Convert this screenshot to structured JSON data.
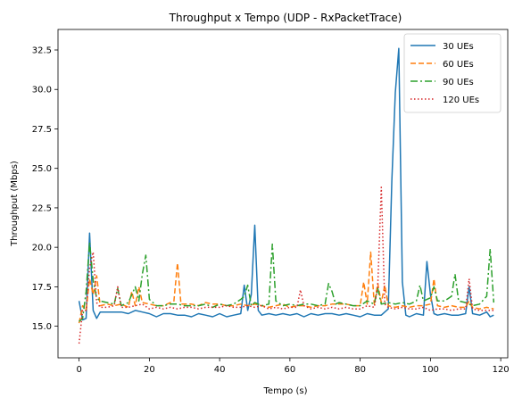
{
  "chart_data": {
    "type": "line",
    "title": "Throughput x Tempo (UDP - RxPacketTrace)",
    "xlabel": "Tempo (s)",
    "ylabel": "Throughput (Mbps)",
    "xlim": [
      -6,
      122
    ],
    "ylim": [
      13.0,
      33.8
    ],
    "xticks": [
      0,
      20,
      40,
      60,
      80,
      100,
      120
    ],
    "yticks": [
      15.0,
      17.5,
      20.0,
      22.5,
      25.0,
      27.5,
      30.0,
      32.5
    ],
    "ytick_labels": [
      "15.0",
      "17.5",
      "20.0",
      "22.5",
      "25.0",
      "27.5",
      "30.0",
      "32.5"
    ],
    "grid": false,
    "legend_position": "top-right",
    "series": [
      {
        "name": "30 UEs",
        "color": "#1f77b4",
        "dash": "solid",
        "points": [
          [
            0,
            16.6
          ],
          [
            1,
            15.4
          ],
          [
            2,
            15.5
          ],
          [
            3,
            20.9
          ],
          [
            4,
            16.0
          ],
          [
            5,
            15.5
          ],
          [
            6,
            15.9
          ],
          [
            8,
            15.9
          ],
          [
            10,
            15.9
          ],
          [
            12,
            15.9
          ],
          [
            14,
            15.8
          ],
          [
            16,
            16.0
          ],
          [
            18,
            15.9
          ],
          [
            20,
            15.8
          ],
          [
            22,
            15.6
          ],
          [
            24,
            15.8
          ],
          [
            26,
            15.8
          ],
          [
            28,
            15.7
          ],
          [
            30,
            15.7
          ],
          [
            32,
            15.6
          ],
          [
            34,
            15.8
          ],
          [
            36,
            15.7
          ],
          [
            38,
            15.6
          ],
          [
            40,
            15.8
          ],
          [
            42,
            15.6
          ],
          [
            44,
            15.7
          ],
          [
            46,
            15.8
          ],
          [
            47,
            17.6
          ],
          [
            48,
            16.0
          ],
          [
            49,
            17.0
          ],
          [
            50,
            21.4
          ],
          [
            51,
            16.0
          ],
          [
            52,
            15.7
          ],
          [
            54,
            15.8
          ],
          [
            56,
            15.7
          ],
          [
            58,
            15.8
          ],
          [
            60,
            15.7
          ],
          [
            62,
            15.8
          ],
          [
            64,
            15.6
          ],
          [
            66,
            15.8
          ],
          [
            68,
            15.7
          ],
          [
            70,
            15.8
          ],
          [
            72,
            15.8
          ],
          [
            74,
            15.7
          ],
          [
            76,
            15.8
          ],
          [
            78,
            15.7
          ],
          [
            80,
            15.6
          ],
          [
            82,
            15.8
          ],
          [
            84,
            15.7
          ],
          [
            86,
            15.7
          ],
          [
            87,
            15.9
          ],
          [
            88,
            16.1
          ],
          [
            89,
            24.2
          ],
          [
            90,
            29.8
          ],
          [
            91,
            32.6
          ],
          [
            92,
            17.8
          ],
          [
            93,
            15.7
          ],
          [
            94,
            15.6
          ],
          [
            96,
            15.8
          ],
          [
            98,
            15.7
          ],
          [
            99,
            19.1
          ],
          [
            100,
            17.0
          ],
          [
            101,
            15.8
          ],
          [
            102,
            15.7
          ],
          [
            104,
            15.8
          ],
          [
            106,
            15.7
          ],
          [
            108,
            15.7
          ],
          [
            110,
            15.8
          ],
          [
            111,
            17.5
          ],
          [
            112,
            15.8
          ],
          [
            114,
            15.7
          ],
          [
            116,
            15.9
          ],
          [
            117,
            15.6
          ],
          [
            118,
            15.7
          ]
        ]
      },
      {
        "name": "60 UEs",
        "color": "#ff7f0e",
        "dash": "6,3",
        "points": [
          [
            0,
            15.2
          ],
          [
            1,
            16.3
          ],
          [
            2,
            16.0
          ],
          [
            3,
            18.0
          ],
          [
            4,
            17.0
          ],
          [
            5,
            18.2
          ],
          [
            6,
            16.3
          ],
          [
            8,
            16.4
          ],
          [
            10,
            16.3
          ],
          [
            12,
            16.4
          ],
          [
            14,
            16.2
          ],
          [
            15,
            17.2
          ],
          [
            16,
            16.3
          ],
          [
            17,
            17.5
          ],
          [
            18,
            16.5
          ],
          [
            20,
            16.4
          ],
          [
            22,
            16.3
          ],
          [
            24,
            16.3
          ],
          [
            26,
            16.5
          ],
          [
            27,
            16.6
          ],
          [
            28,
            19.0
          ],
          [
            29,
            16.4
          ],
          [
            30,
            16.4
          ],
          [
            32,
            16.4
          ],
          [
            34,
            16.3
          ],
          [
            36,
            16.5
          ],
          [
            38,
            16.4
          ],
          [
            40,
            16.4
          ],
          [
            42,
            16.3
          ],
          [
            44,
            16.3
          ],
          [
            46,
            16.4
          ],
          [
            48,
            16.3
          ],
          [
            50,
            16.4
          ],
          [
            52,
            16.3
          ],
          [
            54,
            16.2
          ],
          [
            56,
            16.3
          ],
          [
            58,
            16.4
          ],
          [
            60,
            16.2
          ],
          [
            62,
            16.3
          ],
          [
            64,
            16.3
          ],
          [
            66,
            16.2
          ],
          [
            68,
            16.3
          ],
          [
            70,
            16.3
          ],
          [
            72,
            16.4
          ],
          [
            74,
            16.4
          ],
          [
            76,
            16.4
          ],
          [
            78,
            16.3
          ],
          [
            80,
            16.3
          ],
          [
            81,
            17.8
          ],
          [
            82,
            16.4
          ],
          [
            83,
            19.7
          ],
          [
            84,
            16.4
          ],
          [
            85,
            17.7
          ],
          [
            86,
            16.5
          ],
          [
            87,
            17.6
          ],
          [
            88,
            16.3
          ],
          [
            90,
            16.2
          ],
          [
            92,
            16.3
          ],
          [
            94,
            16.2
          ],
          [
            96,
            16.3
          ],
          [
            98,
            16.3
          ],
          [
            100,
            16.4
          ],
          [
            101,
            18.0
          ],
          [
            102,
            16.3
          ],
          [
            104,
            16.2
          ],
          [
            106,
            16.3
          ],
          [
            108,
            16.2
          ],
          [
            110,
            16.2
          ],
          [
            111,
            16.6
          ],
          [
            112,
            16.2
          ],
          [
            114,
            16.1
          ],
          [
            116,
            16.2
          ],
          [
            118,
            16.1
          ]
        ]
      },
      {
        "name": "90 UEs",
        "color": "#2ca02c",
        "dash": "8,3,2,3",
        "points": [
          [
            0,
            15.3
          ],
          [
            1,
            15.5
          ],
          [
            2,
            17.2
          ],
          [
            3,
            20.3
          ],
          [
            4,
            17.9
          ],
          [
            5,
            16.8
          ],
          [
            6,
            16.6
          ],
          [
            8,
            16.5
          ],
          [
            10,
            16.4
          ],
          [
            11,
            17.4
          ],
          [
            12,
            16.3
          ],
          [
            14,
            16.5
          ],
          [
            16,
            17.5
          ],
          [
            17,
            16.6
          ],
          [
            18,
            18.3
          ],
          [
            19,
            19.5
          ],
          [
            20,
            16.7
          ],
          [
            22,
            16.3
          ],
          [
            24,
            16.3
          ],
          [
            26,
            16.4
          ],
          [
            28,
            16.4
          ],
          [
            30,
            16.3
          ],
          [
            32,
            16.3
          ],
          [
            34,
            16.3
          ],
          [
            36,
            16.4
          ],
          [
            38,
            16.2
          ],
          [
            40,
            16.4
          ],
          [
            42,
            16.3
          ],
          [
            44,
            16.4
          ],
          [
            46,
            16.7
          ],
          [
            47,
            16.9
          ],
          [
            48,
            17.6
          ],
          [
            49,
            16.3
          ],
          [
            50,
            16.5
          ],
          [
            52,
            16.3
          ],
          [
            54,
            16.4
          ],
          [
            55,
            20.2
          ],
          [
            56,
            16.6
          ],
          [
            58,
            16.3
          ],
          [
            60,
            16.4
          ],
          [
            62,
            16.3
          ],
          [
            64,
            16.4
          ],
          [
            66,
            16.4
          ],
          [
            68,
            16.3
          ],
          [
            70,
            16.4
          ],
          [
            71,
            17.7
          ],
          [
            72,
            17.2
          ],
          [
            73,
            16.4
          ],
          [
            74,
            16.5
          ],
          [
            76,
            16.4
          ],
          [
            78,
            16.3
          ],
          [
            80,
            16.3
          ],
          [
            82,
            16.6
          ],
          [
            84,
            16.4
          ],
          [
            85,
            17.4
          ],
          [
            86,
            16.4
          ],
          [
            88,
            16.5
          ],
          [
            90,
            16.4
          ],
          [
            92,
            16.5
          ],
          [
            94,
            16.4
          ],
          [
            96,
            16.6
          ],
          [
            97,
            17.6
          ],
          [
            98,
            16.6
          ],
          [
            100,
            16.8
          ],
          [
            101,
            17.5
          ],
          [
            102,
            16.6
          ],
          [
            104,
            16.6
          ],
          [
            106,
            16.9
          ],
          [
            107,
            18.3
          ],
          [
            108,
            16.6
          ],
          [
            110,
            16.5
          ],
          [
            112,
            16.3
          ],
          [
            114,
            16.4
          ],
          [
            116,
            16.9
          ],
          [
            117,
            19.9
          ],
          [
            118,
            16.5
          ]
        ]
      },
      {
        "name": "120 UEs",
        "color": "#d62728",
        "dash": "1.5,2.5",
        "points": [
          [
            0,
            13.9
          ],
          [
            1,
            16.0
          ],
          [
            2,
            16.0
          ],
          [
            3,
            18.7
          ],
          [
            4,
            19.7
          ],
          [
            5,
            16.5
          ],
          [
            6,
            16.2
          ],
          [
            8,
            16.2
          ],
          [
            10,
            16.3
          ],
          [
            11,
            17.5
          ],
          [
            12,
            16.2
          ],
          [
            14,
            16.2
          ],
          [
            16,
            16.3
          ],
          [
            18,
            16.4
          ],
          [
            20,
            16.1
          ],
          [
            22,
            16.2
          ],
          [
            24,
            16.1
          ],
          [
            26,
            16.2
          ],
          [
            28,
            16.1
          ],
          [
            30,
            16.2
          ],
          [
            32,
            16.2
          ],
          [
            34,
            16.1
          ],
          [
            36,
            16.2
          ],
          [
            38,
            16.2
          ],
          [
            40,
            16.2
          ],
          [
            42,
            16.3
          ],
          [
            44,
            16.2
          ],
          [
            46,
            16.2
          ],
          [
            48,
            16.3
          ],
          [
            50,
            16.2
          ],
          [
            52,
            16.3
          ],
          [
            54,
            16.1
          ],
          [
            56,
            16.2
          ],
          [
            58,
            16.1
          ],
          [
            60,
            16.2
          ],
          [
            62,
            16.2
          ],
          [
            63,
            17.3
          ],
          [
            64,
            16.3
          ],
          [
            66,
            16.1
          ],
          [
            68,
            16.2
          ],
          [
            70,
            16.1
          ],
          [
            72,
            16.2
          ],
          [
            74,
            16.1
          ],
          [
            76,
            16.2
          ],
          [
            78,
            16.1
          ],
          [
            80,
            16.1
          ],
          [
            82,
            16.3
          ],
          [
            84,
            16.2
          ],
          [
            85,
            17.5
          ],
          [
            86,
            23.8
          ],
          [
            87,
            16.4
          ],
          [
            88,
            16.2
          ],
          [
            90,
            16.1
          ],
          [
            92,
            16.2
          ],
          [
            94,
            16.1
          ],
          [
            96,
            16.1
          ],
          [
            98,
            16.2
          ],
          [
            100,
            16.0
          ],
          [
            102,
            16.1
          ],
          [
            104,
            16.1
          ],
          [
            106,
            16.0
          ],
          [
            108,
            16.1
          ],
          [
            110,
            16.1
          ],
          [
            111,
            18.0
          ],
          [
            112,
            16.1
          ],
          [
            114,
            16.0
          ],
          [
            116,
            16.0
          ],
          [
            118,
            16.0
          ]
        ]
      }
    ]
  }
}
